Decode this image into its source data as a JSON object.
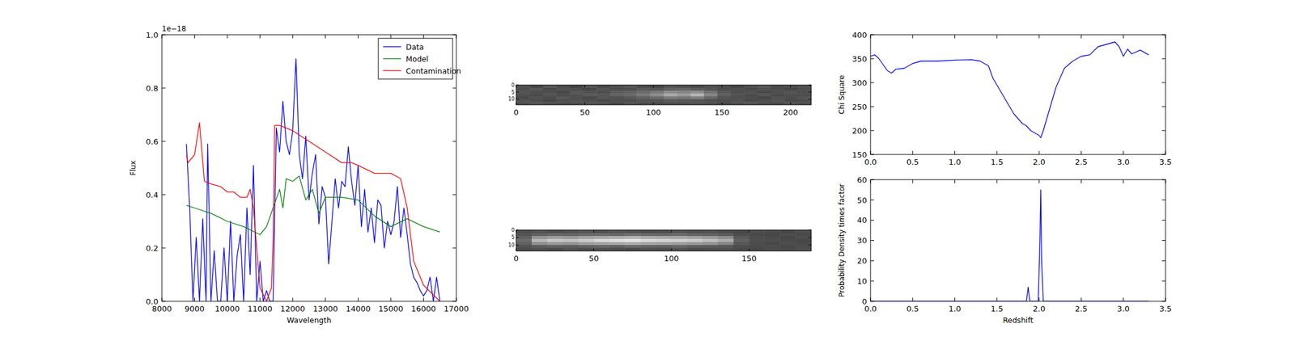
{
  "chart_data": [
    {
      "type": "line",
      "xlabel": "Wavelength",
      "ylabel": "Flux",
      "annotations": [
        "1e−18"
      ],
      "xlim": [
        8000,
        17000
      ],
      "ylim": [
        0,
        1.0
      ],
      "xticks": [
        8000,
        9000,
        10000,
        11000,
        12000,
        13000,
        14000,
        15000,
        16000,
        17000
      ],
      "yticks": [
        {
          "value": 0,
          "label": "0.0"
        },
        0.2,
        0.4,
        0.6,
        0.8,
        {
          "value": 1,
          "label": "1.0"
        }
      ],
      "legend": "upper right",
      "series": [
        {
          "name": "Data",
          "color": "#0000ff",
          "x": [
            8750,
            8850,
            8950,
            9050,
            9150,
            9250,
            9350,
            9400,
            9500,
            9600,
            9700,
            9800,
            9900,
            10000,
            10100,
            10200,
            10300,
            10400,
            10500,
            10600,
            10700,
            10800,
            10900,
            11000,
            11100,
            11200,
            11300,
            11400,
            11500,
            11600,
            11700,
            11800,
            11900,
            12000,
            12100,
            12200,
            12300,
            12400,
            12500,
            12600,
            12700,
            12800,
            12900,
            13000,
            13100,
            13200,
            13300,
            13400,
            13500,
            13600,
            13700,
            13800,
            13900,
            14000,
            14100,
            14200,
            14300,
            14400,
            14500,
            14600,
            14700,
            14800,
            14900,
            15000,
            15100,
            15200,
            15300,
            15400,
            15500,
            15600,
            15700,
            15800,
            15900,
            16000,
            16100,
            16200,
            16300,
            16400,
            16500
          ],
          "values": [
            0.59,
            0.35,
            0.0,
            0.24,
            0.0,
            0.31,
            0.0,
            0.59,
            0.0,
            0.19,
            0.0,
            0.0,
            0.2,
            0.0,
            0.3,
            0.0,
            0.17,
            0.25,
            0.0,
            0.35,
            0.1,
            0.51,
            0.0,
            0.15,
            0.0,
            0.04,
            0.0,
            0.0,
            0.65,
            0.56,
            0.75,
            0.6,
            0.55,
            0.64,
            0.91,
            0.55,
            0.46,
            0.62,
            0.38,
            0.48,
            0.55,
            0.29,
            0.43,
            0.39,
            0.14,
            0.3,
            0.46,
            0.35,
            0.45,
            0.43,
            0.58,
            0.45,
            0.36,
            0.51,
            0.28,
            0.42,
            0.26,
            0.35,
            0.22,
            0.38,
            0.36,
            0.2,
            0.3,
            0.25,
            0.3,
            0.43,
            0.24,
            0.35,
            0.25,
            0.14,
            0.09,
            0.07,
            0.04,
            0.02,
            0.04,
            0.09,
            0.0,
            0.09,
            0.0
          ]
        },
        {
          "name": "Model",
          "color": "#008000",
          "x": [
            8750,
            9000,
            9500,
            10000,
            10500,
            11000,
            11200,
            11400,
            11600,
            11700,
            11800,
            12000,
            12200,
            12400,
            12600,
            12800,
            13000,
            13500,
            14000,
            14500,
            15000,
            15500,
            16000,
            16500
          ],
          "values": [
            0.36,
            0.35,
            0.33,
            0.3,
            0.28,
            0.25,
            0.28,
            0.35,
            0.42,
            0.35,
            0.46,
            0.45,
            0.47,
            0.38,
            0.42,
            0.33,
            0.39,
            0.39,
            0.38,
            0.32,
            0.28,
            0.31,
            0.28,
            0.26
          ]
        },
        {
          "name": "Contamination",
          "color": "#ff0000",
          "x": [
            8750,
            8800,
            9000,
            9150,
            9300,
            9500,
            9800,
            10000,
            10200,
            10400,
            10600,
            10700,
            10800,
            10900,
            11000,
            11200,
            11350,
            11400,
            11450,
            11600,
            12000,
            12500,
            13000,
            13500,
            13800,
            14000,
            14500,
            15000,
            15300,
            15500,
            15700,
            16000,
            16500
          ],
          "values": [
            0.55,
            0.52,
            0.55,
            0.67,
            0.45,
            0.44,
            0.43,
            0.41,
            0.41,
            0.39,
            0.39,
            0.42,
            0.35,
            0.2,
            0.05,
            0.0,
            0.05,
            0.22,
            0.66,
            0.66,
            0.64,
            0.6,
            0.56,
            0.52,
            0.52,
            0.51,
            0.48,
            0.48,
            0.46,
            0.35,
            0.15,
            0.06,
            0.0
          ]
        }
      ]
    },
    {
      "type": "heatmap",
      "xlim": [
        0,
        215
      ],
      "ylim": [
        14,
        0
      ],
      "xticks": [
        0,
        50,
        100,
        150,
        200
      ],
      "yticks": [
        0,
        5,
        10
      ],
      "cells": [
        [
          0.32,
          0.28,
          0.35,
          0.3,
          0.27,
          0.33,
          0.29,
          0.31,
          0.34,
          0.3,
          0.28,
          0.33,
          0.31,
          0.29,
          0.32,
          0.3,
          0.27,
          0.31,
          0.34,
          0.29,
          0.3,
          0.32
        ],
        [
          0.3,
          0.34,
          0.29,
          0.32,
          0.3,
          0.28,
          0.33,
          0.3,
          0.31,
          0.35,
          0.33,
          0.38,
          0.4,
          0.36,
          0.33,
          0.3,
          0.31,
          0.29,
          0.32,
          0.3,
          0.28,
          0.31
        ],
        [
          0.33,
          0.3,
          0.31,
          0.28,
          0.34,
          0.32,
          0.3,
          0.36,
          0.38,
          0.42,
          0.48,
          0.55,
          0.52,
          0.56,
          0.45,
          0.35,
          0.3,
          0.32,
          0.29,
          0.31,
          0.33,
          0.3
        ],
        [
          0.31,
          0.29,
          0.33,
          0.3,
          0.32,
          0.35,
          0.34,
          0.38,
          0.41,
          0.47,
          0.55,
          0.66,
          0.6,
          0.7,
          0.52,
          0.37,
          0.32,
          0.3,
          0.33,
          0.29,
          0.31,
          0.3
        ],
        [
          0.29,
          0.32,
          0.3,
          0.34,
          0.31,
          0.29,
          0.33,
          0.32,
          0.35,
          0.38,
          0.42,
          0.48,
          0.46,
          0.5,
          0.4,
          0.33,
          0.31,
          0.3,
          0.28,
          0.32,
          0.3,
          0.33
        ],
        [
          0.32,
          0.3,
          0.28,
          0.31,
          0.33,
          0.3,
          0.29,
          0.31,
          0.3,
          0.33,
          0.32,
          0.35,
          0.34,
          0.33,
          0.31,
          0.3,
          0.32,
          0.29,
          0.31,
          0.33,
          0.29,
          0.3
        ],
        [
          0.3,
          0.33,
          0.31,
          0.29,
          0.3,
          0.32,
          0.31,
          0.28,
          0.32,
          0.3,
          0.29,
          0.31,
          0.3,
          0.32,
          0.3,
          0.28,
          0.31,
          0.33,
          0.3,
          0.29,
          0.32,
          0.31
        ]
      ]
    },
    {
      "type": "heatmap",
      "xlim": [
        0,
        190
      ],
      "ylim": [
        14,
        0
      ],
      "xticks": [
        0,
        50,
        100,
        150
      ],
      "yticks": [
        0,
        5,
        10
      ],
      "cells": [
        [
          0.3,
          0.32,
          0.29,
          0.31,
          0.33,
          0.3,
          0.32,
          0.31,
          0.29,
          0.3,
          0.32,
          0.3,
          0.31,
          0.29,
          0.28,
          0.3,
          0.29,
          0.27,
          0.3
        ],
        [
          0.33,
          0.38,
          0.4,
          0.39,
          0.41,
          0.42,
          0.4,
          0.43,
          0.41,
          0.4,
          0.42,
          0.39,
          0.38,
          0.36,
          0.3,
          0.29,
          0.28,
          0.3,
          0.29
        ],
        [
          0.38,
          0.58,
          0.62,
          0.6,
          0.64,
          0.66,
          0.68,
          0.7,
          0.67,
          0.66,
          0.65,
          0.63,
          0.6,
          0.55,
          0.35,
          0.3,
          0.29,
          0.28,
          0.3
        ],
        [
          0.42,
          0.72,
          0.78,
          0.76,
          0.8,
          0.85,
          0.88,
          0.9,
          0.86,
          0.84,
          0.82,
          0.8,
          0.75,
          0.68,
          0.38,
          0.31,
          0.3,
          0.29,
          0.28
        ],
        [
          0.38,
          0.56,
          0.6,
          0.58,
          0.62,
          0.64,
          0.66,
          0.68,
          0.65,
          0.64,
          0.62,
          0.6,
          0.58,
          0.52,
          0.34,
          0.3,
          0.28,
          0.3,
          0.29
        ],
        [
          0.32,
          0.36,
          0.38,
          0.37,
          0.39,
          0.4,
          0.38,
          0.41,
          0.39,
          0.38,
          0.4,
          0.37,
          0.36,
          0.34,
          0.3,
          0.29,
          0.3,
          0.28,
          0.3
        ],
        [
          0.3,
          0.31,
          0.29,
          0.32,
          0.3,
          0.31,
          0.3,
          0.29,
          0.31,
          0.3,
          0.32,
          0.29,
          0.3,
          0.31,
          0.29,
          0.28,
          0.3,
          0.29,
          0.31
        ]
      ]
    },
    {
      "type": "line",
      "ylabel": "Chi Square",
      "color": "#0000ff",
      "xlim": [
        0,
        3.5
      ],
      "ylim": [
        150,
        400
      ],
      "xticks": [
        {
          "value": 0,
          "label": "0.0"
        },
        0.5,
        {
          "value": 1,
          "label": "1.0"
        },
        1.5,
        {
          "value": 2,
          "label": "2.0"
        },
        2.5,
        {
          "value": 3,
          "label": "3.0"
        },
        3.5
      ],
      "yticks": [
        150,
        200,
        250,
        300,
        350,
        400
      ],
      "x": [
        0,
        0.05,
        0.1,
        0.2,
        0.25,
        0.3,
        0.4,
        0.5,
        0.6,
        0.8,
        1.0,
        1.2,
        1.3,
        1.4,
        1.45,
        1.5,
        1.6,
        1.7,
        1.8,
        1.85,
        1.9,
        1.95,
        2.0,
        2.02,
        2.05,
        2.1,
        2.2,
        2.3,
        2.4,
        2.5,
        2.6,
        2.7,
        2.8,
        2.9,
        2.95,
        3.0,
        3.05,
        3.1,
        3.2,
        3.3
      ],
      "values": [
        355,
        358,
        350,
        325,
        320,
        328,
        330,
        340,
        345,
        345,
        347,
        348,
        345,
        335,
        310,
        295,
        265,
        235,
        215,
        210,
        200,
        195,
        190,
        185,
        200,
        230,
        290,
        330,
        345,
        355,
        358,
        375,
        380,
        385,
        375,
        355,
        370,
        360,
        368,
        358
      ]
    },
    {
      "type": "line",
      "xlabel": "Redshift",
      "ylabel": "Probability Density times factor",
      "color": "#0000ff",
      "xlim": [
        0,
        3.5
      ],
      "ylim": [
        0,
        60
      ],
      "xticks": [
        {
          "value": 0,
          "label": "0.0"
        },
        0.5,
        {
          "value": 1,
          "label": "1.0"
        },
        1.5,
        {
          "value": 2,
          "label": "2.0"
        },
        2.5,
        {
          "value": 3,
          "label": "3.0"
        },
        3.5
      ],
      "yticks": [
        0,
        10,
        20,
        30,
        40,
        50,
        60
      ],
      "x": [
        0,
        1.8,
        1.85,
        1.87,
        1.89,
        1.99,
        2.01,
        2.02,
        2.03,
        2.05,
        3.3
      ],
      "values": [
        0,
        0,
        0,
        7,
        0,
        0,
        30,
        55,
        20,
        0,
        0
      ]
    }
  ]
}
